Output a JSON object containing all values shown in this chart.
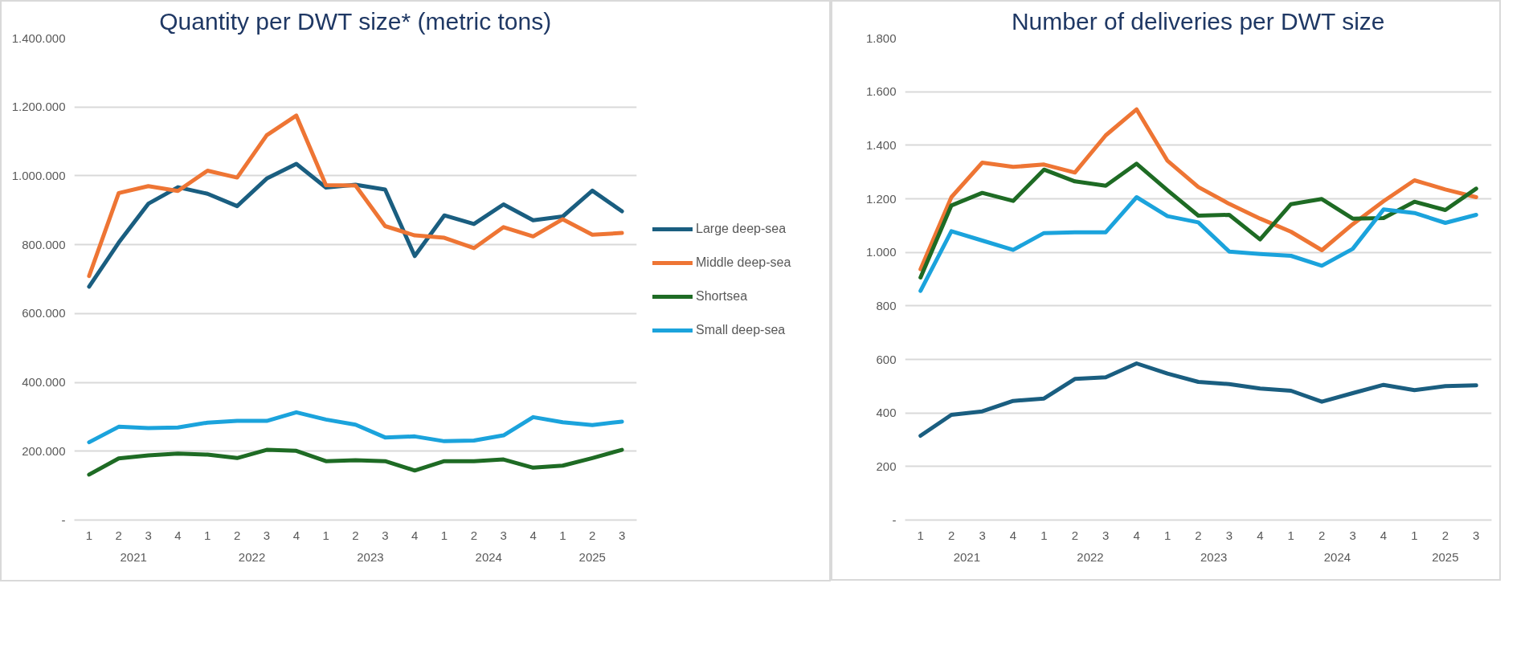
{
  "chart_data": [
    {
      "type": "line",
      "title": "Quantity per DWT size* (metric tons)",
      "categories": [
        "1",
        "2",
        "3",
        "4",
        "1",
        "2",
        "3",
        "4",
        "1",
        "2",
        "3",
        "4",
        "1",
        "2",
        "3",
        "4",
        "1",
        "2",
        "3"
      ],
      "annotations": [
        "2021",
        "2022",
        "2023",
        "2024",
        "2025"
      ],
      "ylim": [
        0,
        1400000
      ],
      "yticks": [
        {
          "value": 0,
          "label": "-"
        },
        {
          "value": 200000,
          "label": "200.000"
        },
        {
          "value": 400000,
          "label": "400.000"
        },
        {
          "value": 600000,
          "label": "600.000"
        },
        {
          "value": 800000,
          "label": "800.000"
        },
        {
          "value": 1000000,
          "label": "1.000.000"
        },
        {
          "value": 1200000,
          "label": "1.200.000"
        },
        {
          "value": 1400000,
          "label": "1.400.000"
        }
      ],
      "grid": "y",
      "legend": "right",
      "series": [
        {
          "name": "Large deep-sea",
          "color": "#1a5e80",
          "values": [
            678000,
            806000,
            919000,
            967000,
            948000,
            912000,
            992000,
            1035000,
            966000,
            974000,
            960000,
            767000,
            885000,
            860000,
            917000,
            871000,
            882000,
            957000,
            897000
          ]
        },
        {
          "name": "Middle deep-sea",
          "color": "#ee7534",
          "values": [
            709000,
            950000,
            970000,
            956000,
            1015000,
            995000,
            1118000,
            1175000,
            973000,
            972000,
            854000,
            827000,
            820000,
            790000,
            851000,
            824000,
            874000,
            829000,
            834000
          ]
        },
        {
          "name": "Shortsea",
          "color": "#1e6b24",
          "values": [
            132000,
            179000,
            188000,
            193000,
            190000,
            180000,
            204000,
            201000,
            171000,
            174000,
            171000,
            144000,
            171000,
            171000,
            176000,
            152000,
            158000,
            180000,
            204000
          ]
        },
        {
          "name": "Small deep-sea",
          "color": "#1ba3dc",
          "values": [
            226000,
            271000,
            267000,
            269000,
            283000,
            288000,
            288000,
            313000,
            292000,
            277000,
            240000,
            243000,
            229000,
            231000,
            246000,
            299000,
            284000,
            276000,
            286000
          ]
        }
      ]
    },
    {
      "type": "line",
      "title": "Number of deliveries per DWT size",
      "categories": [
        "1",
        "2",
        "3",
        "4",
        "1",
        "2",
        "3",
        "4",
        "1",
        "2",
        "3",
        "4",
        "1",
        "2",
        "3",
        "4",
        "1",
        "2",
        "3"
      ],
      "annotations": [
        "2021",
        "2022",
        "2023",
        "2024",
        "2025"
      ],
      "ylim": [
        0,
        1800
      ],
      "yticks": [
        {
          "value": 0,
          "label": "-"
        },
        200,
        400,
        600,
        800,
        {
          "value": 1000,
          "label": "1.000"
        },
        {
          "value": 1200,
          "label": "1.200"
        },
        {
          "value": 1400,
          "label": "1.400"
        },
        {
          "value": 1600,
          "label": "1.600"
        },
        {
          "value": 1800,
          "label": "1.800"
        }
      ],
      "grid": "y",
      "series": [
        {
          "color": "#1a5e80",
          "values": [
            315,
            393,
            406,
            445,
            454,
            527,
            533,
            585,
            547,
            516,
            508,
            491,
            483,
            442,
            474,
            505,
            485,
            500,
            503
          ]
        },
        {
          "color": "#ee7534",
          "values": [
            937,
            1206,
            1335,
            1319,
            1328,
            1298,
            1437,
            1534,
            1342,
            1244,
            1181,
            1126,
            1077,
            1008,
            1105,
            1191,
            1269,
            1235,
            1206
          ]
        },
        {
          "color": "#1e6b24",
          "values": [
            906,
            1175,
            1222,
            1192,
            1309,
            1265,
            1249,
            1331,
            1232,
            1137,
            1140,
            1048,
            1180,
            1199,
            1126,
            1128,
            1189,
            1158,
            1238
          ]
        },
        {
          "color": "#1ba3dc",
          "values": [
            856,
            1079,
            1044,
            1009,
            1072,
            1075,
            1075,
            1206,
            1135,
            1112,
            1003,
            994,
            987,
            950,
            1013,
            1160,
            1147,
            1110,
            1140
          ]
        }
      ]
    }
  ]
}
